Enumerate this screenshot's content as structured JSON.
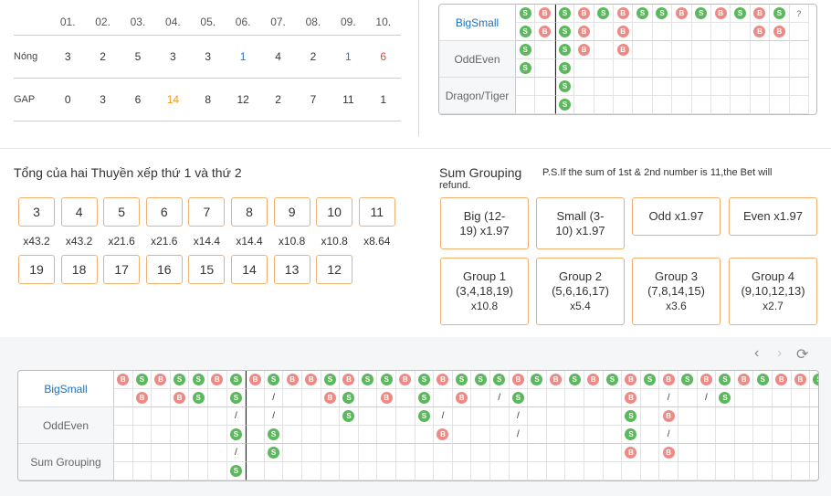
{
  "hot_gap": {
    "headers": [
      "01.",
      "02.",
      "03.",
      "04.",
      "05.",
      "06.",
      "07.",
      "08.",
      "09.",
      "10."
    ],
    "rows": [
      {
        "label": "Nóng",
        "values": [
          "3",
          "2",
          "5",
          "3",
          "3",
          "1",
          "4",
          "2",
          "1",
          "6"
        ],
        "colors": [
          "",
          "",
          "",
          "",
          "",
          "blue",
          "",
          "",
          "blue",
          "red"
        ]
      },
      {
        "label": "GAP",
        "values": [
          "0",
          "3",
          "6",
          "14",
          "8",
          "12",
          "2",
          "7",
          "11",
          "1"
        ],
        "colors": [
          "",
          "",
          "",
          "orange",
          "",
          "",
          "",
          "",
          "",
          ""
        ]
      }
    ]
  },
  "top_grid": {
    "labels": [
      "BigSmall",
      "OddEven",
      "Dragon/Tiger"
    ],
    "question": "?",
    "rows": [
      [
        "S",
        "B",
        "S",
        "B",
        "S",
        "B",
        "S",
        "S",
        "B",
        "S",
        "B",
        "S",
        "B",
        "S",
        "?"
      ],
      [
        "S",
        "B",
        "S",
        "B",
        "",
        "B",
        "",
        "",
        "",
        "",
        "",
        "",
        "B",
        "B",
        ""
      ],
      [
        "S",
        "",
        "S",
        "B",
        "",
        "B",
        "",
        "",
        "",
        "",
        "",
        "",
        "",
        "",
        ""
      ],
      [
        "S",
        "",
        "S",
        "",
        "",
        "",
        "",
        "",
        "",
        "",
        "",
        "",
        "",
        "",
        ""
      ],
      [
        "",
        "",
        "S",
        "",
        "",
        "",
        "",
        "",
        "",
        "",
        "",
        "",
        "",
        "",
        ""
      ],
      [
        "",
        "",
        "S",
        "",
        "",
        "",
        "",
        "",
        "",
        "",
        "",
        "",
        "",
        "",
        ""
      ]
    ]
  },
  "sum": {
    "title": "Tổng của hai Thuyền xếp thứ 1 và thứ 2",
    "row1": [
      "3",
      "4",
      "5",
      "6",
      "7",
      "8",
      "9",
      "10",
      "11"
    ],
    "odds1": [
      "x43.2",
      "x43.2",
      "x21.6",
      "x21.6",
      "x14.4",
      "x14.4",
      "x10.8",
      "x10.8",
      "x8.64"
    ],
    "row2": [
      "19",
      "18",
      "17",
      "16",
      "15",
      "14",
      "13",
      "12"
    ]
  },
  "grouping": {
    "title": "Sum Grouping",
    "note_line1": "P.S.If the sum of 1st & 2nd number is 11,the Bet will",
    "note_line2": "refund.",
    "buttons": [
      {
        "line1": "Big (12-",
        "line2": "19) x1.97",
        "line3": ""
      },
      {
        "line1": "Small (3-",
        "line2": "10) x1.97",
        "line3": ""
      },
      {
        "line1": "Odd  x1.97",
        "line2": "",
        "line3": ""
      },
      {
        "line1": "Even  x1.97",
        "line2": "",
        "line3": ""
      },
      {
        "line1": "Group 1",
        "line2": "(3,4,18,19)",
        "line3": "x10.8"
      },
      {
        "line1": "Group 2",
        "line2": "(5,6,16,17)",
        "line3": "x5.4"
      },
      {
        "line1": "Group 3",
        "line2": "(7,8,14,15)",
        "line3": "x3.6"
      },
      {
        "line1": "Group 4",
        "line2": "(9,10,12,13)",
        "line3": "x2.7"
      }
    ]
  },
  "nav": {
    "prev": "‹",
    "next": "›",
    "refresh": "⟳"
  },
  "bottom_grid": {
    "labels": [
      "BigSmall",
      "OddEven",
      "Sum Grouping"
    ],
    "question": "?",
    "rows": [
      [
        "B",
        "S",
        "B",
        "S",
        "S",
        "B",
        "S",
        "B",
        "S",
        "B",
        "B",
        "S",
        "B",
        "S",
        "S",
        "B",
        "S",
        "B",
        "S",
        "S",
        "S",
        "B",
        "S",
        "B",
        "S",
        "B",
        "S",
        "B",
        "S",
        "B",
        "S",
        "B",
        "S",
        "B",
        "S",
        "B",
        "B",
        "S",
        "?"
      ],
      [
        "",
        "B",
        "",
        "B",
        "S",
        "",
        "S",
        "",
        "/",
        "",
        "",
        "B",
        "S",
        "",
        "B",
        "",
        "S",
        "",
        "B",
        "",
        "/",
        "S",
        "",
        "",
        "",
        "",
        "",
        "B",
        "",
        "/",
        "",
        "/",
        "S",
        "",
        "",
        "",
        "",
        "",
        ""
      ],
      [
        "",
        "",
        "",
        "",
        "",
        "",
        "/",
        "",
        "/",
        "",
        "",
        "",
        "S",
        "",
        "",
        "",
        "S",
        "/",
        "",
        "",
        "",
        "/",
        "",
        "",
        "",
        "",
        "",
        "S",
        "",
        "B",
        "",
        "",
        "",
        "",
        "",
        "",
        "",
        "",
        ""
      ],
      [
        "",
        "",
        "",
        "",
        "",
        "",
        "S",
        "",
        "S",
        "",
        "",
        "",
        "",
        "",
        "",
        "",
        "",
        "B",
        "",
        "",
        "",
        "/",
        "",
        "",
        "",
        "",
        "",
        "S",
        "",
        "/",
        "",
        "",
        "",
        "",
        "",
        "",
        "",
        "",
        ""
      ],
      [
        "",
        "",
        "",
        "",
        "",
        "",
        "/",
        "",
        "S",
        "",
        "",
        "",
        "",
        "",
        "",
        "",
        "",
        "",
        "",
        "",
        "",
        "",
        "",
        "",
        "",
        "",
        "",
        "B",
        "",
        "B",
        "",
        "",
        "",
        "",
        "",
        "",
        "",
        "",
        ""
      ],
      [
        "",
        "",
        "",
        "",
        "",
        "",
        "S",
        "",
        "",
        "",
        "",
        "",
        "",
        "",
        "",
        "",
        "",
        "",
        "",
        "",
        "",
        "",
        "",
        "",
        "",
        "",
        "",
        "",
        "",
        "",
        "",
        "",
        "",
        "",
        "",
        "",
        "",
        "",
        ""
      ]
    ]
  },
  "colors": {
    "accent": "#f0b070",
    "big": "#ee8a85",
    "small": "#5cb85c",
    "label_blue": "#1e6fb8"
  }
}
